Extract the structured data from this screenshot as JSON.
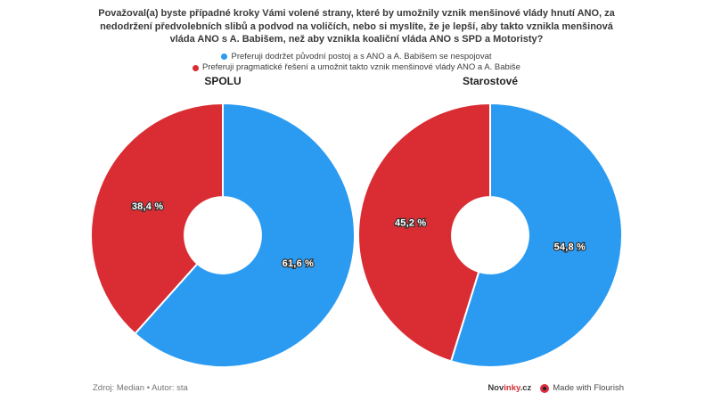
{
  "title": "Považoval(a) byste případné kroky Vámi volené strany, které by umožnily vznik menšinové vlády hnutí ANO, za nedodržení předvolebních slibů a podvod na voličích, nebo si myslíte, že je lepší, aby takto vznikla menšinová vláda ANO s A. Babišem, než aby vznikla koaliční vláda ANO s SPD a Motoristy?",
  "legend": [
    {
      "label": "Preferuji dodržet původní postoj a s ANO a A. Babišem se nespojovat",
      "color": "#2b9bf2"
    },
    {
      "label": "Preferuji pragmatické řešení a umožnit takto vznik menšinové vlády ANO a A. Babiše",
      "color": "#d92d33"
    }
  ],
  "chart_data": [
    {
      "type": "pie",
      "subtype": "donut",
      "title": "SPOLU",
      "categories": [
        "Preferuji dodržet původní postoj a s ANO a A. Babišem se nespojovat",
        "Preferuji pragmatické řešení a umožnit takto vznik menšinové vlády ANO a A. Babiše"
      ],
      "values": [
        61.6,
        38.4
      ],
      "value_labels": [
        "61,6 %",
        "38,4 %"
      ],
      "colors": [
        "#2b9bf2",
        "#d92d33"
      ],
      "start_angle_deg": 0,
      "direction": "clockwise",
      "inner_radius": 0.29,
      "legend_position": "top-center"
    },
    {
      "type": "pie",
      "subtype": "donut",
      "title": "Starostové",
      "categories": [
        "Preferuji dodržet původní postoj a s ANO a A. Babišem se nespojovat",
        "Preferuji pragmatické řešení a umožnit takto vznik menšinové vlády ANO a A. Babiše"
      ],
      "values": [
        54.8,
        45.2
      ],
      "value_labels": [
        "54,8 %",
        "45,2 %"
      ],
      "colors": [
        "#2b9bf2",
        "#d92d33"
      ],
      "start_angle_deg": 0,
      "direction": "clockwise",
      "inner_radius": 0.29,
      "legend_position": "top-center"
    }
  ],
  "footer": {
    "source": "Zdroj: Median • Autor: sta",
    "brand": {
      "prefix": "Nov",
      "highlight": "inky",
      "suffix": ".cz"
    },
    "flourish_label": "Made with Flourish"
  }
}
